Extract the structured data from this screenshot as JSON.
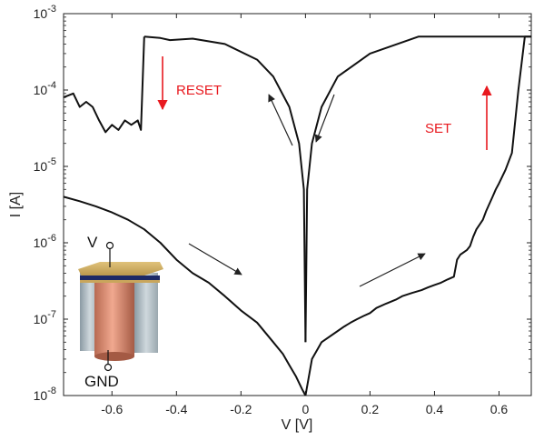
{
  "chart_data": {
    "type": "line",
    "title": "",
    "xlabel": "V [V]",
    "ylabel": "I [A]",
    "xlim": [
      -0.75,
      0.7
    ],
    "ylim": [
      1e-08,
      0.001
    ],
    "yscale": "log",
    "grid": false,
    "x_ticks": [
      {
        "value": -0.6,
        "label": "-0.6"
      },
      {
        "value": -0.4,
        "label": "-0.4"
      },
      {
        "value": -0.2,
        "label": "-0.2"
      },
      {
        "value": 0,
        "label": "0"
      },
      {
        "value": 0.2,
        "label": "0.2"
      },
      {
        "value": 0.4,
        "label": "0.4"
      },
      {
        "value": 0.6,
        "label": "0.6"
      }
    ],
    "y_ticks": [
      {
        "value": 0.001,
        "base": "10",
        "exp": "-3"
      },
      {
        "value": 0.0001,
        "base": "10",
        "exp": "-4"
      },
      {
        "value": 1e-05,
        "base": "10",
        "exp": "-5"
      },
      {
        "value": 1e-06,
        "base": "10",
        "exp": "-6"
      },
      {
        "value": 1e-07,
        "base": "10",
        "exp": "-7"
      },
      {
        "value": 1e-08,
        "base": "10",
        "exp": "-8"
      }
    ],
    "series": [
      {
        "x": [
          0.0,
          0.02,
          0.05,
          0.1,
          0.12,
          0.14,
          0.16,
          0.18,
          0.2,
          0.22,
          0.25,
          0.28,
          0.3,
          0.33,
          0.36,
          0.38,
          0.4,
          0.42,
          0.44,
          0.46,
          0.47,
          0.48,
          0.5,
          0.51,
          0.52,
          0.53,
          0.55,
          0.56,
          0.58,
          0.59,
          0.6,
          0.62,
          0.64,
          0.66,
          0.68,
          0.7
        ],
        "y": [
          1e-08,
          3e-08,
          5e-08,
          7e-08,
          8e-08,
          9e-08,
          1e-07,
          1.1e-07,
          1.2e-07,
          1.4e-07,
          1.6e-07,
          1.8e-07,
          2e-07,
          2.2e-07,
          2.4e-07,
          2.6e-07,
          2.8e-07,
          3e-07,
          3.3e-07,
          3.6e-07,
          6e-07,
          7e-07,
          8e-07,
          9e-07,
          1.2e-06,
          1.5e-06,
          2e-06,
          2.6e-06,
          4e-06,
          5e-06,
          6e-06,
          9e-06,
          1.5e-05,
          0.0001,
          0.0005,
          0.0005
        ]
      },
      {
        "x": [
          0.7,
          0.5,
          0.35,
          0.2,
          0.1,
          0.05,
          0.02,
          0.005,
          0.0
        ],
        "y": [
          0.0005,
          0.0005,
          0.0005,
          0.0003,
          0.00015,
          6e-05,
          2e-05,
          5e-06,
          5e-08
        ]
      },
      {
        "x": [
          0.0,
          -0.005,
          -0.02,
          -0.05,
          -0.1,
          -0.15,
          -0.25,
          -0.35,
          -0.42,
          -0.45,
          -0.5
        ],
        "y": [
          5e-08,
          5e-06,
          2e-05,
          6e-05,
          0.00015,
          0.00025,
          0.0004,
          0.00047,
          0.00045,
          0.00048,
          0.0005
        ]
      },
      {
        "x": [
          -0.5,
          -0.51,
          -0.52,
          -0.54,
          -0.56,
          -0.58,
          -0.6,
          -0.62,
          -0.64,
          -0.66,
          -0.68,
          -0.7,
          -0.72,
          -0.75
        ],
        "y": [
          0.0005,
          3e-05,
          4e-05,
          3.5e-05,
          4e-05,
          3e-05,
          3.5e-05,
          2.8e-05,
          4e-05,
          6e-05,
          7e-05,
          6e-05,
          9e-05,
          8e-05
        ]
      },
      {
        "x": [
          -0.75,
          -0.7,
          -0.65,
          -0.6,
          -0.55,
          -0.5,
          -0.45,
          -0.4,
          -0.35,
          -0.3,
          -0.25,
          -0.2,
          -0.15,
          -0.1,
          -0.07,
          -0.05,
          -0.03,
          -0.01,
          0.0
        ],
        "y": [
          4e-06,
          3.5e-06,
          3e-06,
          2.5e-06,
          2e-06,
          1.5e-06,
          1e-06,
          6e-07,
          4e-07,
          3e-07,
          2e-07,
          1.3e-07,
          9e-08,
          5e-08,
          3.5e-08,
          2.5e-08,
          1.8e-08,
          1.2e-08,
          1e-08
        ]
      }
    ],
    "annotations": [
      {
        "text": "RESET",
        "color": "#e8191f"
      },
      {
        "text": "SET",
        "color": "#e8191f"
      }
    ],
    "inset": {
      "top_label": "V",
      "bottom_label": "GND"
    }
  }
}
